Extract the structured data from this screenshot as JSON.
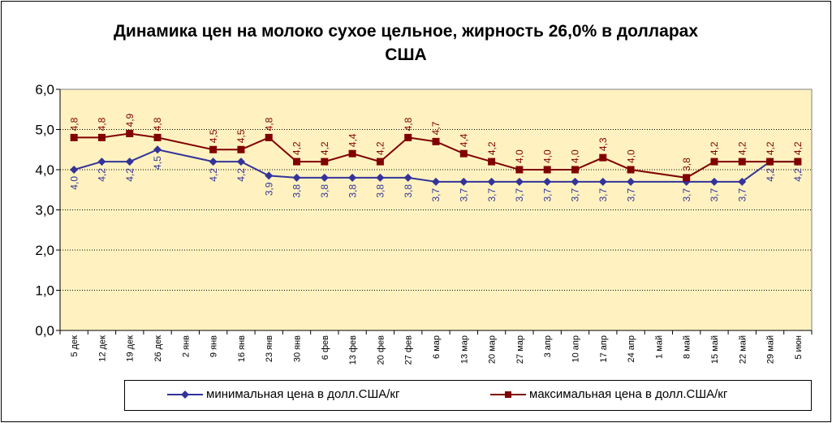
{
  "chart_data": {
    "type": "line",
    "title": "Динамика цен на молоко сухое цельное, жирность 26,0%  в долларах США",
    "categories": [
      "5 дек",
      "12 дек",
      "19 дек",
      "26 дек",
      "2 янв",
      "9 янв",
      "16 янв",
      "23 янв",
      "30 янв",
      "6 фев",
      "13 фев",
      "20 фев",
      "27 фев",
      "6 мар",
      "13 мар",
      "20 мар",
      "27 мар",
      "3 апр",
      "10 апр",
      "17 апр",
      "24 апр",
      "1 май",
      "8 май",
      "15 май",
      "22 май",
      "29 май",
      "5 июн"
    ],
    "ylim": [
      0,
      6
    ],
    "yticks": [
      "0,0",
      "1,0",
      "2,0",
      "3,0",
      "4,0",
      "5,0",
      "6,0"
    ],
    "grid": true,
    "legend_position": "bottom",
    "series": [
      {
        "name": "минимальная цена в долл.США/кг",
        "color": "#333399",
        "marker": "diamond",
        "values": [
          4.0,
          4.2,
          4.2,
          4.5,
          null,
          4.2,
          4.2,
          3.85,
          3.8,
          3.8,
          3.8,
          3.8,
          3.8,
          3.7,
          3.7,
          3.7,
          3.7,
          3.7,
          3.7,
          3.7,
          3.7,
          null,
          3.7,
          3.7,
          3.7,
          4.2,
          4.2
        ],
        "labels": [
          "4,0",
          "4,2",
          "4,2",
          "4,5",
          "",
          "4,2",
          "4,2",
          "3,9",
          "3,8",
          "3,8",
          "3,8",
          "3,8",
          "3,8",
          "3,7",
          "3,7",
          "3,7",
          "3,7",
          "3,7",
          "3,7",
          "3,7",
          "3,7",
          "",
          "3,7",
          "3,7",
          "3,7",
          "4,2",
          "4,2"
        ]
      },
      {
        "name": "максимальная цена в долл.США/кг",
        "color": "#800000",
        "marker": "square",
        "values": [
          4.8,
          4.8,
          4.9,
          4.8,
          null,
          4.5,
          4.5,
          4.8,
          4.2,
          4.2,
          4.4,
          4.2,
          4.8,
          4.7,
          4.4,
          4.2,
          4.0,
          4.0,
          4.0,
          4.3,
          4.0,
          null,
          3.8,
          4.2,
          4.2,
          4.2,
          4.2
        ],
        "labels": [
          "4,8",
          "4,8",
          "4,9",
          "4,8",
          "",
          "4,5",
          "4,5",
          "4,8",
          "4,2",
          "4,2",
          "4,4",
          "4,2",
          "4,8",
          "4,7",
          "4,4",
          "4,2",
          "4,0",
          "4,0",
          "4,0",
          "4,3",
          "4,0",
          "",
          "3,8",
          "4,2",
          "4,2",
          "4,2",
          "4,2"
        ]
      }
    ]
  }
}
